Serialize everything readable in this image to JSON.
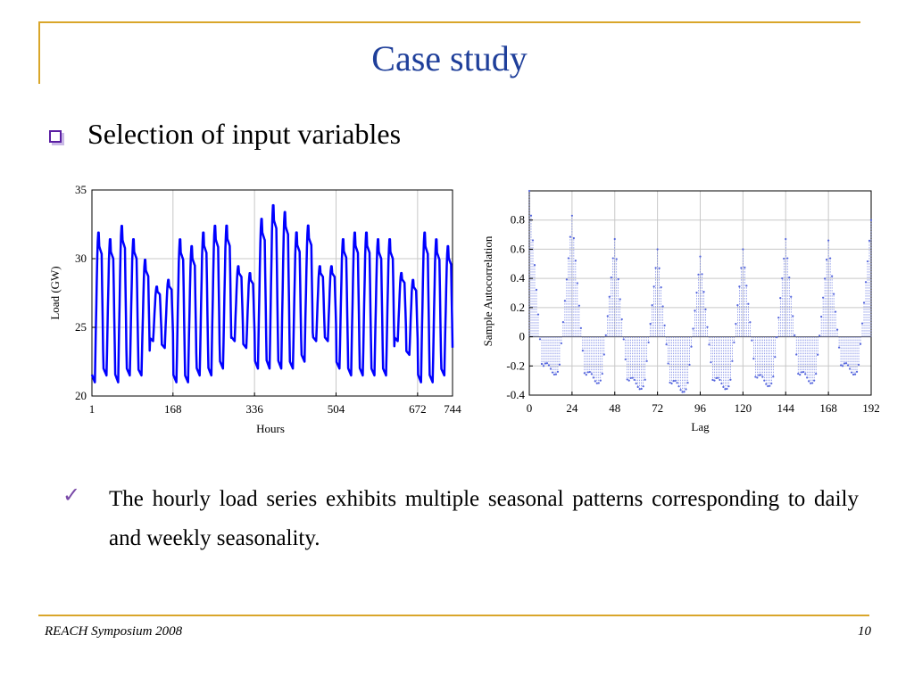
{
  "slide": {
    "title": "Case study",
    "bullet": "Selection of input variables",
    "check_text": "The hourly load series exhibits multiple seasonal patterns corresponding to daily and weekly seasonality.",
    "footer_left": "REACH Symposium 2008",
    "footer_right": "10"
  },
  "colors": {
    "accent": "#D9A62A",
    "title": "#1F3F9A",
    "bullet": "#5B1FA3",
    "series_load": "#0000FF",
    "acf": "#5566DD"
  },
  "icons": {
    "bullet": "square-outline-icon",
    "check": "check-mark-icon"
  },
  "chart_data": [
    {
      "type": "line",
      "title": "",
      "xlabel": "Hours",
      "ylabel": "Load (GW)",
      "xlim": [
        1,
        744
      ],
      "ylim": [
        20,
        35
      ],
      "xticks": [
        1,
        168,
        336,
        504,
        672,
        744
      ],
      "yticks": [
        20,
        25,
        30,
        35
      ],
      "grid": true,
      "series": [
        {
          "description": "hourly load for 31 days, daily cycle; low ~21-24 GW at night, peaks 28-34 GW",
          "daily_min": [
            21.0,
            21.5,
            21.0,
            21.5,
            21.5,
            24.0,
            23.5,
            21.0,
            21.0,
            21.5,
            21.5,
            22.0,
            24.0,
            23.5,
            22.0,
            22.0,
            22.0,
            22.0,
            22.5,
            24.0,
            24.0,
            22.0,
            21.5,
            21.5,
            21.5,
            21.5,
            24.0,
            23.0,
            21.0,
            21.0,
            21.5
          ],
          "daily_max": [
            32.0,
            31.5,
            32.5,
            31.5,
            30.0,
            28.0,
            28.5,
            31.5,
            31.0,
            32.0,
            32.5,
            32.5,
            29.5,
            29.0,
            33.0,
            34.0,
            33.5,
            32.0,
            32.5,
            29.5,
            29.5,
            31.5,
            32.0,
            32.0,
            31.5,
            31.5,
            29.0,
            28.5,
            32.0,
            31.5,
            31.0
          ]
        }
      ]
    },
    {
      "type": "stem",
      "title": "",
      "xlabel": "Lag",
      "ylabel": "Sample Autocorrelation",
      "xlim": [
        0,
        192
      ],
      "ylim": [
        -0.4,
        1.0
      ],
      "xticks": [
        0,
        24,
        48,
        72,
        96,
        120,
        144,
        168,
        192
      ],
      "yticks": [
        -0.4,
        -0.2,
        0,
        0.2,
        0.4,
        0.6,
        0.8
      ],
      "grid": true,
      "peaks": [
        {
          "lag": 0,
          "value": 1.0
        },
        {
          "lag": 24,
          "value": 0.83
        },
        {
          "lag": 48,
          "value": 0.67
        },
        {
          "lag": 72,
          "value": 0.6
        },
        {
          "lag": 96,
          "value": 0.55
        },
        {
          "lag": 120,
          "value": 0.6
        },
        {
          "lag": 144,
          "value": 0.67
        },
        {
          "lag": 168,
          "value": 0.66
        },
        {
          "lag": 192,
          "value": 0.8
        }
      ],
      "trough_values": [
        -0.22,
        -0.28,
        -0.32,
        -0.34,
        -0.32,
        -0.3,
        -0.28,
        -0.22
      ]
    }
  ]
}
